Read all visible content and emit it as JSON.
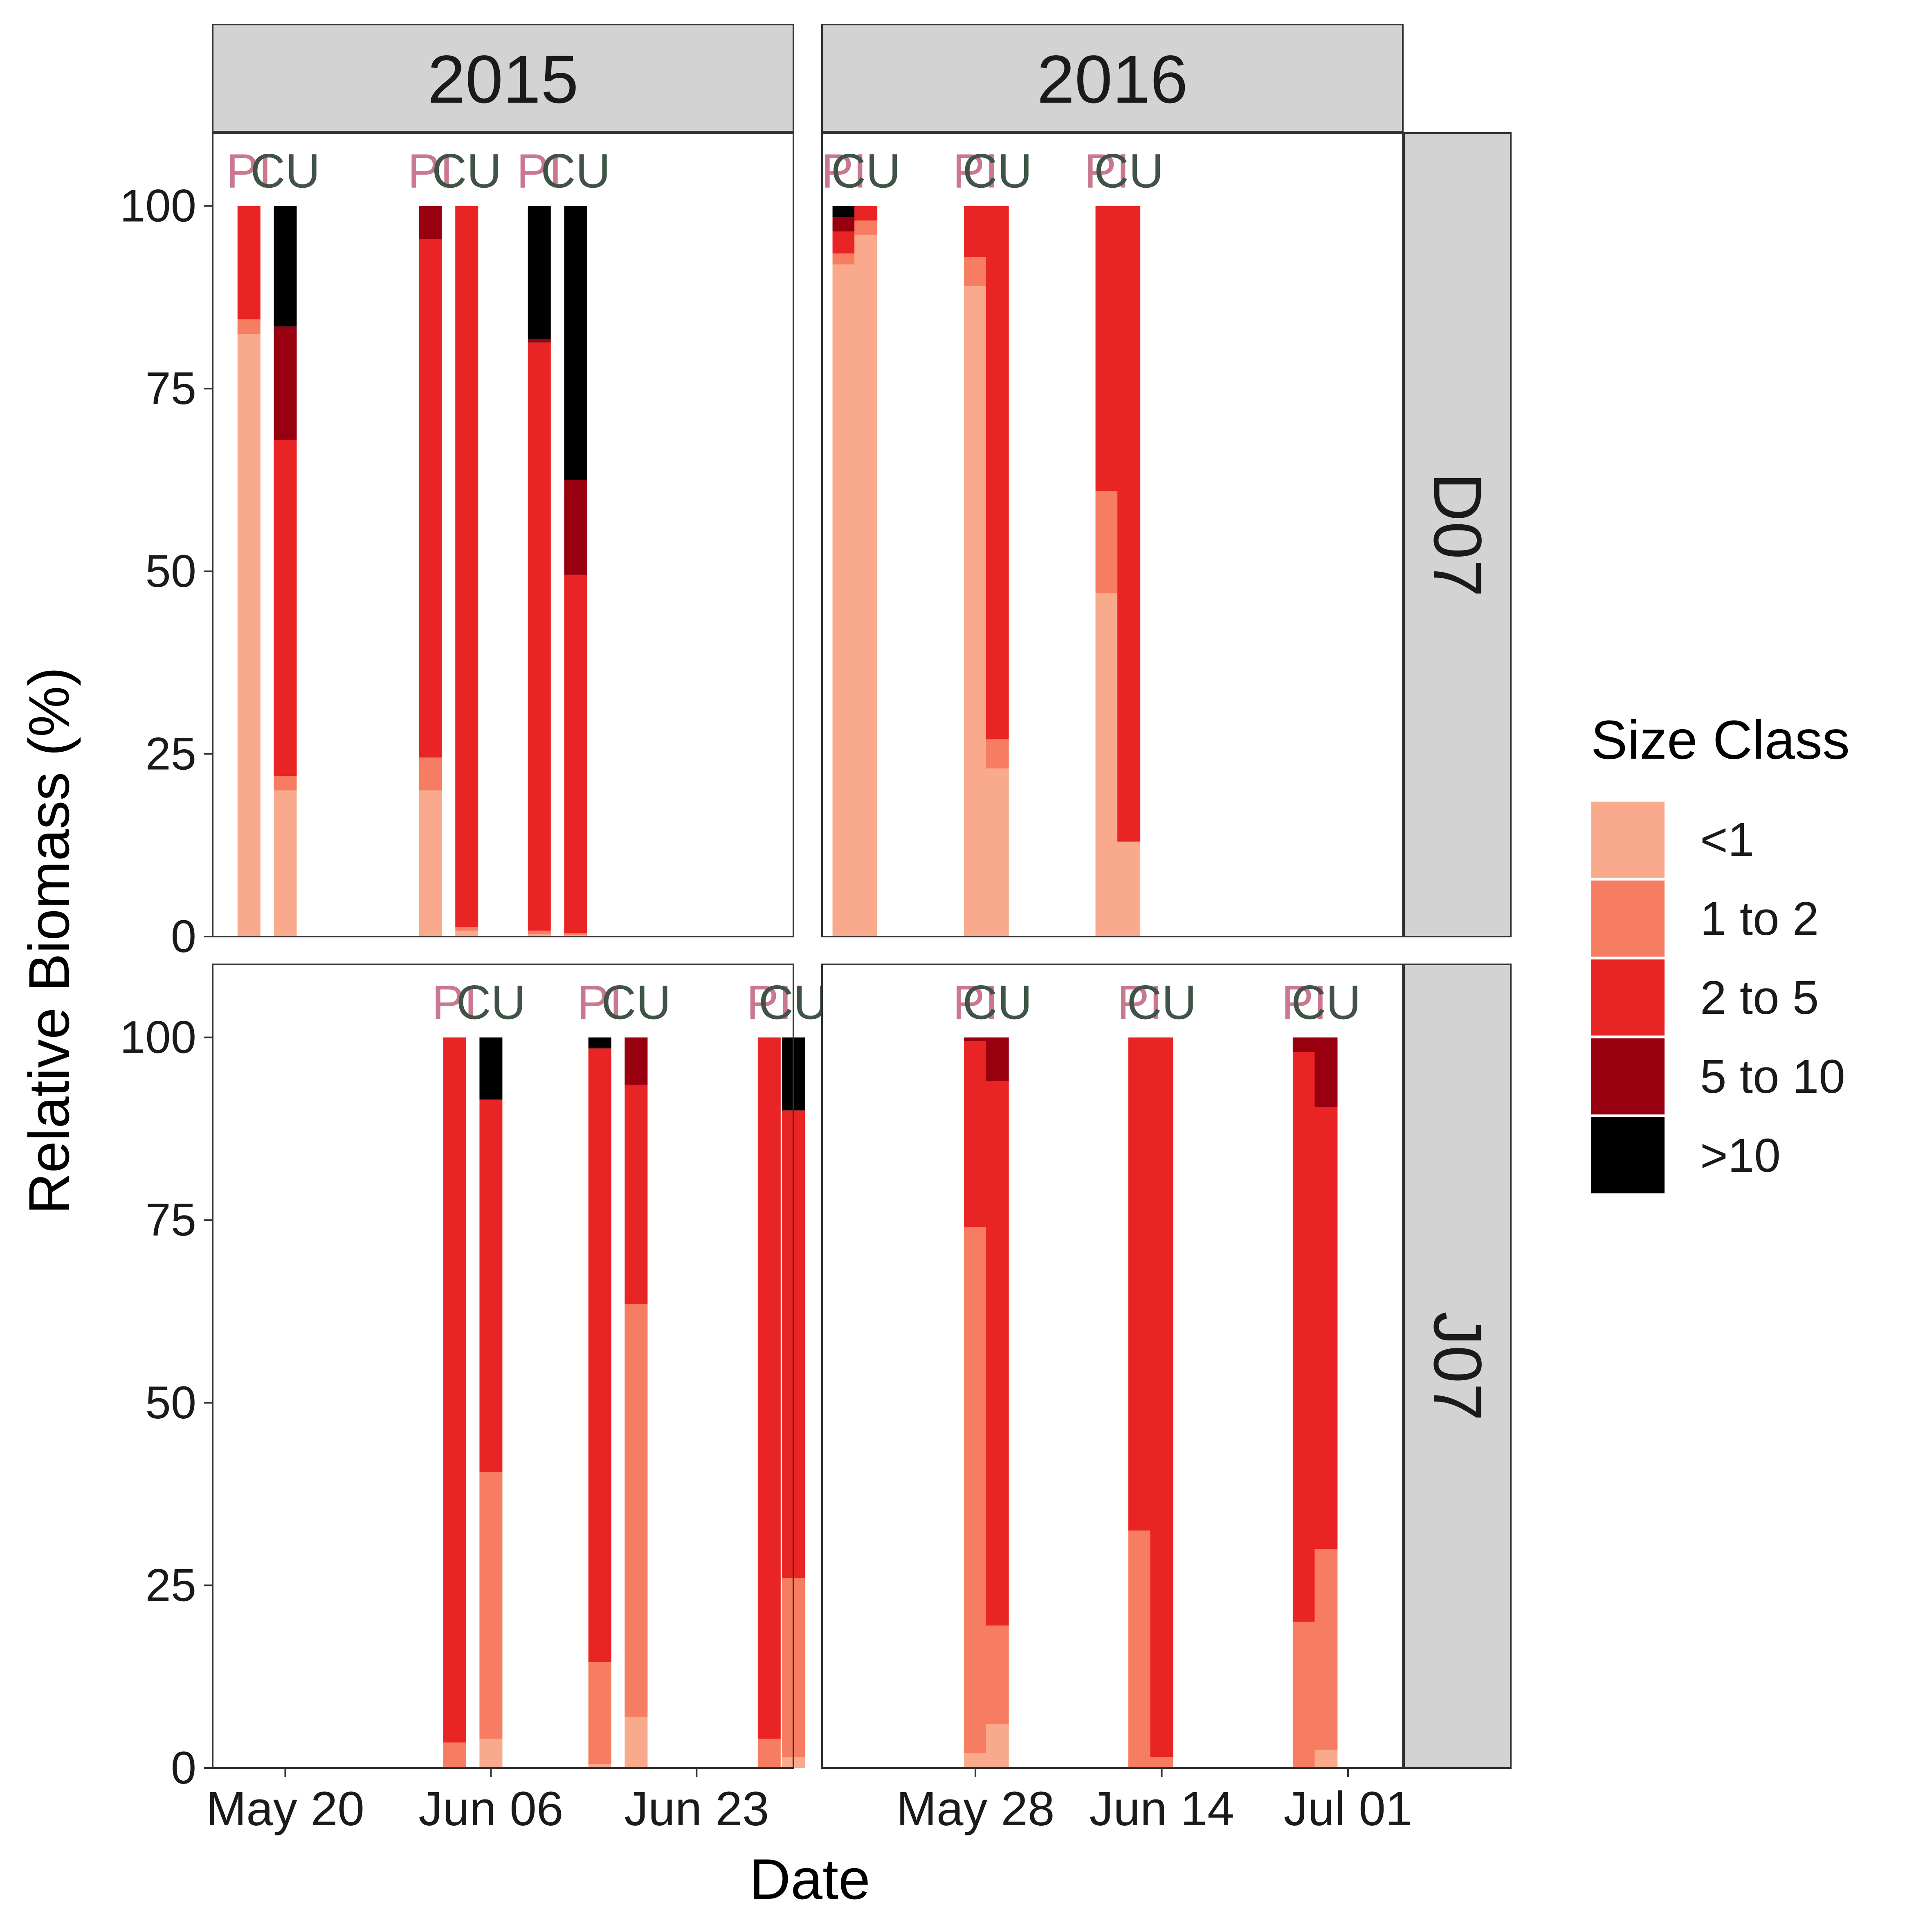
{
  "chart_data": {
    "type": "bar",
    "stacked": true,
    "xlabel": "Date",
    "ylabel": "Relative Biomass (%)",
    "ylim": [
      0,
      110
    ],
    "y_ticks": [
      0,
      25,
      50,
      75,
      100
    ],
    "grid": false,
    "legend": {
      "title": "Size Class",
      "position": "right",
      "entries": [
        {
          "name": "<1",
          "color": "#F9A98C"
        },
        {
          "name": "1 to 2",
          "color": "#F67D61"
        },
        {
          "name": "2 to 5",
          "color": "#E82424"
        },
        {
          "name": "5 to 10",
          "color": "#980010"
        },
        {
          "name": ">10",
          "color": "#000000"
        }
      ]
    },
    "column_strips": [
      "2015",
      "2016"
    ],
    "row_strips": [
      "D07",
      "J07"
    ],
    "columns": [
      {
        "year": "2015",
        "xlim": [
          "2015-05-14",
          "2015-07-01"
        ],
        "x_ticks": [
          {
            "date": "2015-05-20",
            "label": "May 20"
          },
          {
            "date": "2015-06-06",
            "label": "Jun 06"
          },
          {
            "date": "2015-06-23",
            "label": "Jun 23"
          }
        ]
      },
      {
        "year": "2016",
        "xlim": [
          "2016-05-14",
          "2016-07-06"
        ],
        "x_ticks": [
          {
            "date": "2016-05-28",
            "label": "May 28"
          },
          {
            "date": "2016-06-14",
            "label": "Jun 14"
          },
          {
            "date": "2016-07-01",
            "label": "Jul 01"
          }
        ]
      }
    ],
    "bar_labels": [
      {
        "name": "PI",
        "color": "#C9788F"
      },
      {
        "name": "CU",
        "color": "#3F5346"
      }
    ],
    "panels": [
      {
        "row": "D07",
        "year": "2015",
        "bars": [
          {
            "date": "2015-05-17",
            "label": "PI",
            "values": [
              82.5,
              2.0,
              15.5,
              0,
              0
            ]
          },
          {
            "date": "2015-05-20",
            "label": "CU",
            "values": [
              20.0,
              2.0,
              46.0,
              15.5,
              16.5
            ]
          },
          {
            "date": "2015-06-01",
            "label": "PI",
            "values": [
              20.0,
              4.5,
              71.0,
              4.5,
              0
            ]
          },
          {
            "date": "2015-06-04",
            "label": "CU",
            "values": [
              0.8,
              0.5,
              98.7,
              0,
              0
            ]
          },
          {
            "date": "2015-06-10",
            "label": "PI",
            "values": [
              0.3,
              0.5,
              80.5,
              0.5,
              18.2
            ]
          },
          {
            "date": "2015-06-13",
            "label": "CU",
            "values": [
              0.2,
              0.3,
              49.0,
              13.0,
              37.5
            ]
          }
        ]
      },
      {
        "row": "D07",
        "year": "2016",
        "bars": [
          {
            "date": "2016-05-16",
            "label": "PI",
            "values": [
              92.0,
              1.5,
              3.0,
              2.0,
              1.5
            ]
          },
          {
            "date": "2016-05-18",
            "label": "CU",
            "values": [
              96.0,
              2.0,
              2.0,
              0,
              0
            ]
          },
          {
            "date": "2016-05-28",
            "label": "PI",
            "values": [
              89.0,
              4.0,
              7.0,
              0,
              0
            ]
          },
          {
            "date": "2016-05-30",
            "label": "CU",
            "values": [
              23.0,
              4.0,
              73.0,
              0,
              0
            ]
          },
          {
            "date": "2016-06-09",
            "label": "PI",
            "values": [
              47.0,
              14.0,
              39.0,
              0,
              0
            ]
          },
          {
            "date": "2016-06-11",
            "label": "CU",
            "values": [
              13.0,
              0,
              87.0,
              0,
              0
            ]
          }
        ]
      },
      {
        "row": "J07",
        "year": "2015",
        "bars": [
          {
            "date": "2015-06-03",
            "label": "PI",
            "values": [
              0,
              3.5,
              96.5,
              0,
              0
            ]
          },
          {
            "date": "2015-06-06",
            "label": "CU",
            "values": [
              4.0,
              36.5,
              51.0,
              0,
              8.5
            ]
          },
          {
            "date": "2015-06-15",
            "label": "PI",
            "values": [
              0.5,
              14.0,
              84.0,
              0,
              1.5
            ]
          },
          {
            "date": "2015-06-18",
            "label": "CU",
            "values": [
              7.0,
              56.5,
              30.0,
              6.5,
              0
            ]
          },
          {
            "date": "2015-06-29",
            "label": "PI",
            "values": [
              0,
              4.0,
              96.0,
              0,
              0
            ]
          },
          {
            "date": "2015-07-01",
            "label": "CU",
            "values": [
              1.5,
              24.5,
              64.0,
              0,
              10.0
            ]
          }
        ]
      },
      {
        "row": "J07",
        "year": "2016",
        "bars": [
          {
            "date": "2016-05-28",
            "label": "PI",
            "values": [
              2.0,
              72.0,
              25.5,
              0.5,
              0
            ]
          },
          {
            "date": "2016-05-30",
            "label": "CU",
            "values": [
              6.0,
              13.5,
              74.5,
              6.0,
              0
            ]
          },
          {
            "date": "2016-06-12",
            "label": "PI",
            "values": [
              0,
              32.5,
              67.5,
              0,
              0
            ]
          },
          {
            "date": "2016-06-14",
            "label": "CU",
            "values": [
              0,
              1.5,
              98.5,
              0,
              0
            ]
          },
          {
            "date": "2016-06-27",
            "label": "PI",
            "values": [
              0,
              20.0,
              78.0,
              2.0,
              0
            ]
          },
          {
            "date": "2016-06-29",
            "label": "CU",
            "values": [
              2.5,
              27.5,
              60.5,
              9.5,
              0
            ]
          }
        ]
      }
    ]
  }
}
